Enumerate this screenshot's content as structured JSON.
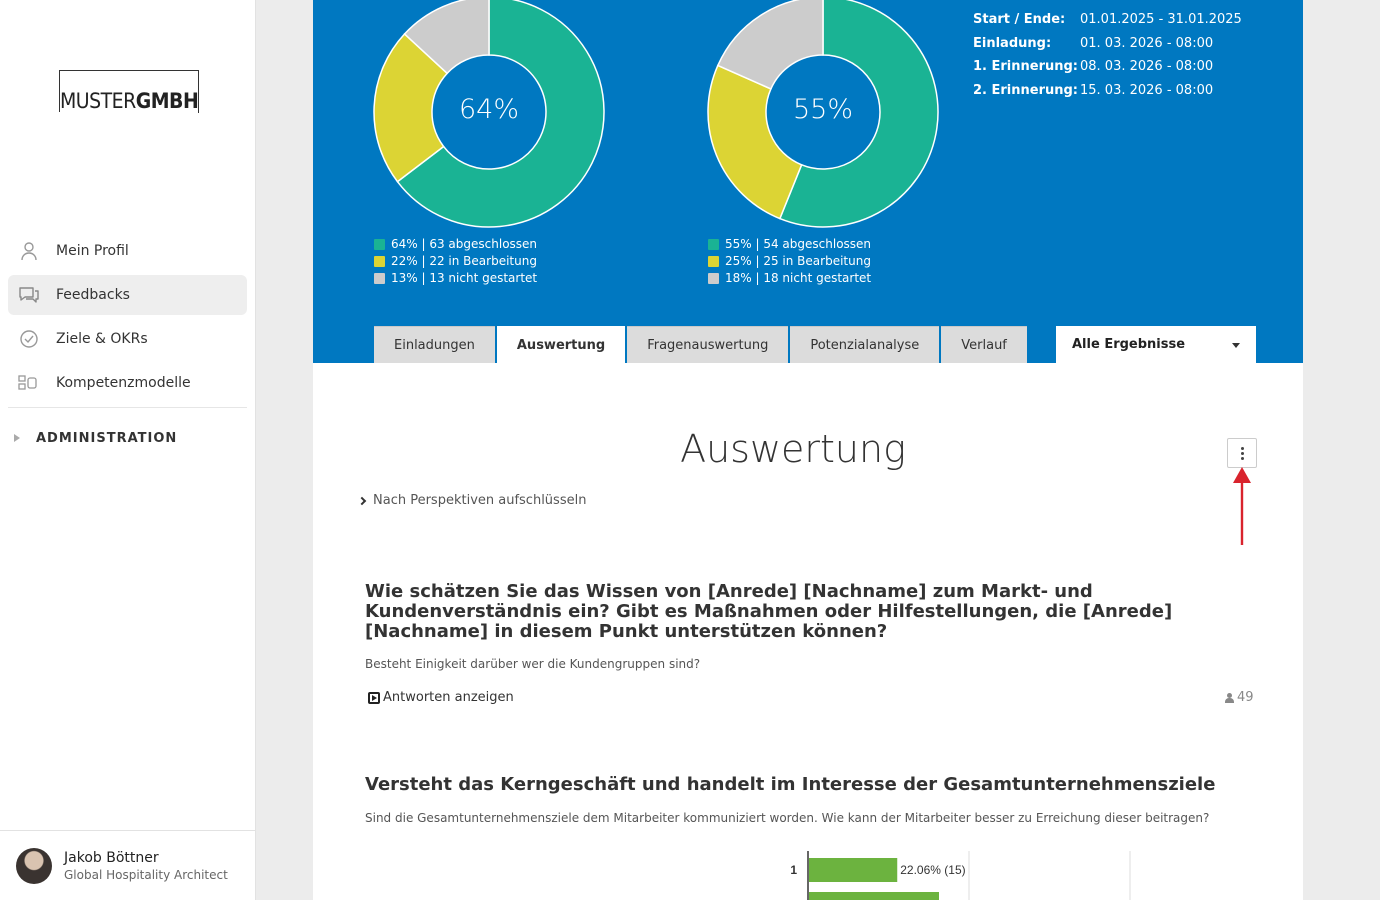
{
  "brand": {
    "logo_light": "MUSTER",
    "logo_bold": "GMBH"
  },
  "sidebar": {
    "items": [
      {
        "label": "Mein Profil",
        "icon": "user-icon"
      },
      {
        "label": "Feedbacks",
        "icon": "chat-icon"
      },
      {
        "label": "Ziele & OKRs",
        "icon": "check-circle-icon"
      },
      {
        "label": "Kompetenzmodelle",
        "icon": "grid-icon"
      }
    ],
    "admin_label": "ADMINISTRATION"
  },
  "user": {
    "name": "Jakob Böttner",
    "role": "Global Hospitality Architect"
  },
  "donuts": [
    {
      "center_label": "64%",
      "segments": [
        {
          "value": 64,
          "color": "#1ab394",
          "label": "64% | 63 abgeschlossen"
        },
        {
          "value": 22,
          "color": "#dcd434",
          "label": "22% | 22 in Bearbeitung"
        },
        {
          "value": 13,
          "color": "#cccccc",
          "label": "13% | 13 nicht gestartet"
        }
      ]
    },
    {
      "center_label": "55%",
      "segments": [
        {
          "value": 55,
          "color": "#1ab394",
          "label": "55% | 54 abgeschlossen"
        },
        {
          "value": 25,
          "color": "#dcd434",
          "label": "25% | 25 in Bearbeitung"
        },
        {
          "value": 18,
          "color": "#cccccc",
          "label": "18% | 18 nicht gestartet"
        }
      ]
    }
  ],
  "info": [
    {
      "key": "Start / Ende:",
      "value": "01.01.2025 - 31.01.2025"
    },
    {
      "key": "Einladung:",
      "value": "01. 03. 2026 - 08:00"
    },
    {
      "key": "1. Erinnerung:",
      "value": "08. 03. 2026 - 08:00"
    },
    {
      "key": "2. Erinnerung:",
      "value": "15. 03. 2026 - 08:00"
    }
  ],
  "tabs": [
    {
      "label": "Einladungen",
      "active": false
    },
    {
      "label": "Auswertung",
      "active": true
    },
    {
      "label": "Fragenauswertung",
      "active": false
    },
    {
      "label": "Potenzialanalyse",
      "active": false
    },
    {
      "label": "Verlauf",
      "active": false
    }
  ],
  "filter": {
    "selected": "Alle Ergebnisse"
  },
  "page": {
    "title": "Auswertung",
    "perspectives_link": "Nach Perspektiven aufschlüsseln"
  },
  "questions": [
    {
      "title": "Wie schätzen Sie das Wissen von [Anrede] [Nachname] zum Markt- und Kundenverständnis ein? Gibt es Maßnahmen oder Hilfestellungen, die [Anrede] [Nachname] in diesem Punkt unterstützen können?",
      "subtitle": "Besteht Einigkeit darüber wer die Kundengruppen sind?",
      "answers_link": "Antworten anzeigen",
      "respondents": "49"
    },
    {
      "title": "Versteht das Kerngeschäft und handelt im Interesse der Gesamtunternehmensziele",
      "subtitle": "Sind die Gesamtunternehmensziele dem Mitarbeiter kommuniziert worden. Wie kann der Mitarbeiter besser zu Erreichung dieser beitragen?"
    }
  ],
  "chart_data": {
    "type": "bar",
    "orientation": "horizontal",
    "categories": [
      "1"
    ],
    "values": [
      22.06
    ],
    "value_labels": [
      "22.06% (15)"
    ],
    "color": "#6cb33f"
  }
}
